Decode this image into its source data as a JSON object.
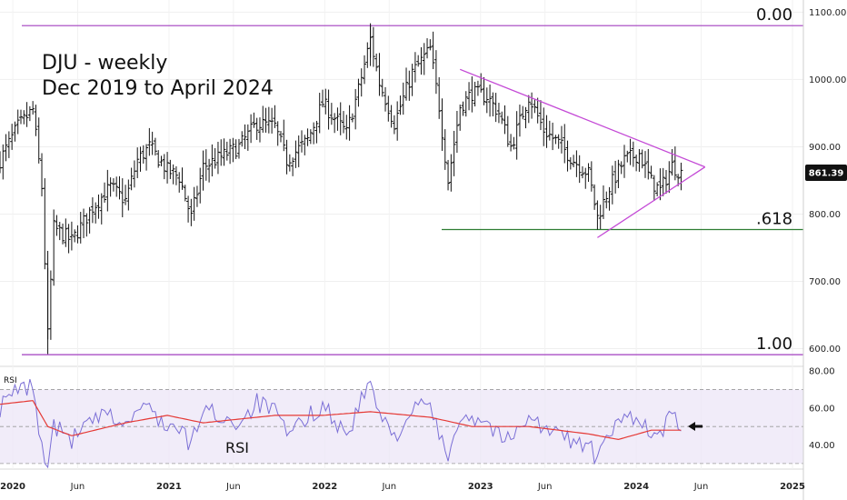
{
  "chart_data": {
    "type": "ohlc-bar",
    "title_line1": "DJU - weekly",
    "title_line2": "Dec 2019 to April 2024",
    "price_axis": {
      "ticks": [
        1100,
        1000,
        900,
        800,
        700,
        600
      ],
      "tick_labels": [
        "1100.00",
        "1000.00",
        "900.00",
        "800.00",
        "700.00",
        "600.00"
      ],
      "range": [
        575,
        1110
      ]
    },
    "last_price": {
      "value": 861.39,
      "label": "861.39"
    },
    "fib_levels": [
      {
        "label": "0.00",
        "value": 1080,
        "color": "#a23fbf"
      },
      {
        "label": ".618",
        "value": 777,
        "color": "#2e7d32"
      },
      {
        "label": "1.00",
        "value": 591,
        "color": "#a23fbf"
      }
    ],
    "triangle": {
      "color": "#c44ad6",
      "upper": [
        [
          "2022-11-14",
          1015
        ],
        [
          "2024-06-10",
          870
        ]
      ],
      "lower": [
        [
          "2023-10-02",
          765
        ],
        [
          "2024-06-10",
          870
        ]
      ]
    },
    "rsi": {
      "label": "RSI",
      "corner_label": "RSI",
      "ticks": [
        80,
        60,
        40
      ],
      "tick_labels": [
        "80.00",
        "60.00",
        "40.00"
      ],
      "range": [
        27,
        82
      ],
      "band": [
        30,
        70
      ],
      "midline": 50,
      "rsi_color": "#7b6fd6",
      "ma_color": "#e53935",
      "current_arrow": "left-arrow-icon"
    },
    "time_axis": {
      "labels": [
        "2020",
        "Jun",
        "2021",
        "Jun",
        "2022",
        "Jun",
        "2023",
        "Jun",
        "2024",
        "Jun",
        "2025"
      ]
    },
    "price_keys": [
      [
        "2019-12-02",
        880
      ],
      [
        "2020-01-13",
        930
      ],
      [
        "2020-02-17",
        955
      ],
      [
        "2020-03-09",
        840
      ],
      [
        "2020-03-23",
        620
      ],
      [
        "2020-04-06",
        780
      ],
      [
        "2020-05-18",
        760
      ],
      [
        "2020-07-06",
        810
      ],
      [
        "2020-08-17",
        840
      ],
      [
        "2020-09-21",
        820
      ],
      [
        "2020-10-19",
        880
      ],
      [
        "2020-11-16",
        900
      ],
      [
        "2020-12-28",
        865
      ],
      [
        "2021-01-25",
        855
      ],
      [
        "2021-02-22",
        795
      ],
      [
        "2021-03-22",
        870
      ],
      [
        "2021-05-03",
        885
      ],
      [
        "2021-06-14",
        900
      ],
      [
        "2021-07-26",
        935
      ],
      [
        "2021-09-06",
        930
      ],
      [
        "2021-10-04",
        880
      ],
      [
        "2021-11-22",
        910
      ],
      [
        "2021-12-27",
        965
      ],
      [
        "2022-02-21",
        920
      ],
      [
        "2022-03-21",
        985
      ],
      [
        "2022-04-18",
        1060
      ],
      [
        "2022-05-09",
        995
      ],
      [
        "2022-06-13",
        935
      ],
      [
        "2022-07-25",
        1010
      ],
      [
        "2022-09-05",
        1045
      ],
      [
        "2022-09-26",
        960
      ],
      [
        "2022-10-17",
        850
      ],
      [
        "2022-11-14",
        960
      ],
      [
        "2022-12-12",
        980
      ],
      [
        "2023-01-16",
        975
      ],
      [
        "2023-02-13",
        950
      ],
      [
        "2023-03-13",
        900
      ],
      [
        "2023-04-24",
        975
      ],
      [
        "2023-05-29",
        925
      ],
      [
        "2023-07-03",
        905
      ],
      [
        "2023-08-07",
        880
      ],
      [
        "2023-09-11",
        860
      ],
      [
        "2023-10-02",
        795
      ],
      [
        "2023-10-30",
        840
      ],
      [
        "2023-12-04",
        880
      ],
      [
        "2024-01-08",
        890
      ],
      [
        "2024-02-05",
        848
      ],
      [
        "2024-02-26",
        835
      ],
      [
        "2024-03-25",
        872
      ],
      [
        "2024-04-15",
        861
      ]
    ],
    "rsi_keys": [
      [
        "2019-12-02",
        60
      ],
      [
        "2020-01-13",
        70
      ],
      [
        "2020-02-17",
        72
      ],
      [
        "2020-03-09",
        38
      ],
      [
        "2020-03-23",
        28
      ],
      [
        "2020-04-06",
        50
      ],
      [
        "2020-05-18",
        43
      ],
      [
        "2020-07-06",
        53
      ],
      [
        "2020-08-17",
        56
      ],
      [
        "2020-09-21",
        50
      ],
      [
        "2020-10-19",
        59
      ],
      [
        "2020-11-16",
        60
      ],
      [
        "2020-12-28",
        50
      ],
      [
        "2021-01-25",
        48
      ],
      [
        "2021-02-22",
        40
      ],
      [
        "2021-03-22",
        60
      ],
      [
        "2021-05-03",
        55
      ],
      [
        "2021-06-14",
        52
      ],
      [
        "2021-07-26",
        63
      ],
      [
        "2021-09-06",
        58
      ],
      [
        "2021-10-04",
        45
      ],
      [
        "2021-11-22",
        55
      ],
      [
        "2021-12-27",
        62
      ],
      [
        "2022-02-21",
        45
      ],
      [
        "2022-03-21",
        60
      ],
      [
        "2022-04-18",
        75
      ],
      [
        "2022-05-09",
        55
      ],
      [
        "2022-06-13",
        45
      ],
      [
        "2022-07-25",
        58
      ],
      [
        "2022-09-05",
        63
      ],
      [
        "2022-09-26",
        44
      ],
      [
        "2022-10-17",
        34
      ],
      [
        "2022-11-14",
        57
      ],
      [
        "2022-12-12",
        55
      ],
      [
        "2023-01-16",
        53
      ],
      [
        "2023-02-13",
        45
      ],
      [
        "2023-03-13",
        42
      ],
      [
        "2023-04-24",
        58
      ],
      [
        "2023-05-29",
        48
      ],
      [
        "2023-07-03",
        46
      ],
      [
        "2023-08-07",
        42
      ],
      [
        "2023-09-11",
        40
      ],
      [
        "2023-10-02",
        32
      ],
      [
        "2023-10-30",
        45
      ],
      [
        "2023-12-04",
        55
      ],
      [
        "2024-01-08",
        56
      ],
      [
        "2024-02-05",
        44
      ],
      [
        "2024-02-26",
        45
      ],
      [
        "2024-03-25",
        57
      ],
      [
        "2024-04-15",
        51
      ]
    ],
    "rsi_ma_keys": [
      [
        "2019-12-02",
        62
      ],
      [
        "2020-02-17",
        64
      ],
      [
        "2020-03-23",
        50
      ],
      [
        "2020-05-18",
        45
      ],
      [
        "2020-09-21",
        52
      ],
      [
        "2020-12-28",
        56
      ],
      [
        "2021-03-22",
        52
      ],
      [
        "2021-09-06",
        56
      ],
      [
        "2021-12-27",
        56
      ],
      [
        "2022-04-18",
        58
      ],
      [
        "2022-09-05",
        55
      ],
      [
        "2022-12-12",
        50
      ],
      [
        "2023-04-24",
        50
      ],
      [
        "2023-09-11",
        46
      ],
      [
        "2023-11-20",
        43
      ],
      [
        "2024-02-05",
        48
      ],
      [
        "2024-04-15",
        48
      ]
    ]
  }
}
